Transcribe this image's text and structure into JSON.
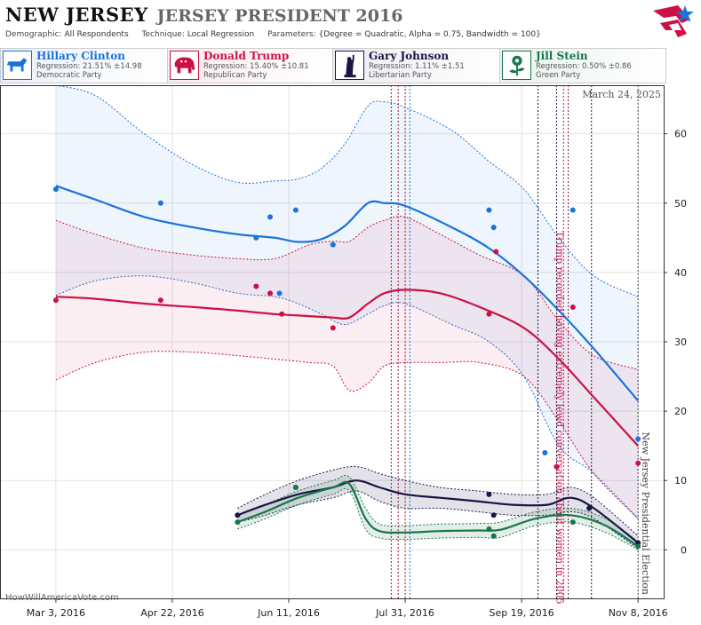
{
  "header": {
    "state": "NEW JERSEY",
    "race": "JERSEY PRESIDENT 2016",
    "demographic_label": "Demographic:",
    "demographic": "All Respondents",
    "technique_label": "Technique:",
    "technique": "Local Regression",
    "parameters_label": "Parameters:",
    "parameters": "{Degree = Quadratic, Alpha = 0.75, Bandwidth = 100}"
  },
  "candidates": [
    {
      "name": "Hillary Clinton",
      "regression": "Regression: 21.51% ±14.98",
      "party": "Democratic Party",
      "color": "#1a73d9",
      "icon": "donkey-icon"
    },
    {
      "name": "Donald Trump",
      "regression": "Regression: 15.40% ±10.81",
      "party": "Republican Party",
      "color": "#cc1144",
      "icon": "elephant-icon"
    },
    {
      "name": "Gary Johnson",
      "regression": "Regression: 1.11% ±1.51",
      "party": "Libertarian Party",
      "color": "#1b1446",
      "icon": "statue-of-liberty-icon"
    },
    {
      "name": "Jill Stein",
      "regression": "Regression: 0.50% ±0.86",
      "party": "Green Party",
      "color": "#16774a",
      "icon": "flower-icon"
    }
  ],
  "date_stamp": "March 24, 2025",
  "credit": "HowWillAmericaVote.com",
  "chart_data": {
    "type": "line",
    "x_axis_type": "date",
    "xlim": [
      "2016-02-08",
      "2016-11-19"
    ],
    "ylim": [
      -7,
      67
    ],
    "yticks": [
      0,
      10,
      20,
      30,
      40,
      50,
      60
    ],
    "xticks": [
      "2016-03-03",
      "2016-04-22",
      "2016-06-11",
      "2016-07-31",
      "2016-09-19",
      "2016-11-08"
    ],
    "xtick_labels": [
      "Mar 3, 2016",
      "Apr 22, 2016",
      "Jun 11, 2016",
      "Jul 31, 2016",
      "Sep 19, 2016",
      "Nov 8, 2016"
    ],
    "grid": true,
    "series": [
      {
        "name": "Hillary Clinton",
        "color": "#1a73d9",
        "trend_x": [
          "2016-03-03",
          "2016-03-20",
          "2016-04-10",
          "2016-05-01",
          "2016-05-20",
          "2016-06-05",
          "2016-06-15",
          "2016-06-25",
          "2016-07-05",
          "2016-07-15",
          "2016-07-22",
          "2016-07-31",
          "2016-08-20",
          "2016-09-05",
          "2016-09-20",
          "2016-10-05",
          "2016-10-20",
          "2016-11-08"
        ],
        "trend": [
          52.5,
          50.5,
          48.0,
          46.5,
          45.5,
          45.0,
          44.4,
          44.8,
          46.7,
          50.0,
          50.0,
          49.6,
          46.5,
          43.5,
          39.5,
          34.5,
          29.0,
          21.5
        ],
        "upper": [
          67.0,
          65.5,
          60.0,
          55.5,
          53.0,
          53.2,
          53.5,
          55.0,
          58.5,
          64.0,
          64.6,
          63.8,
          60.5,
          56.0,
          52.0,
          45.0,
          39.5,
          36.5
        ],
        "lower": [
          36.7,
          38.8,
          39.5,
          38.5,
          37.0,
          36.5,
          35.5,
          34.0,
          32.5,
          34.0,
          35.2,
          35.5,
          32.5,
          30.0,
          25.0,
          15.0,
          11.0,
          4.5
        ],
        "points_x": [
          "2016-03-03",
          "2016-04-17",
          "2016-05-28",
          "2016-06-03",
          "2016-06-07",
          "2016-06-14",
          "2016-06-30",
          "2016-09-05",
          "2016-09-07",
          "2016-09-29",
          "2016-10-11",
          "2016-11-08"
        ],
        "points": [
          52,
          50,
          45,
          48,
          37,
          49,
          44,
          49,
          46.5,
          14,
          49,
          16
        ]
      },
      {
        "name": "Donald Trump",
        "color": "#cc1144",
        "trend_x": [
          "2016-03-03",
          "2016-03-20",
          "2016-04-10",
          "2016-05-01",
          "2016-05-20",
          "2016-06-05",
          "2016-06-20",
          "2016-06-30",
          "2016-07-07",
          "2016-07-15",
          "2016-07-22",
          "2016-07-31",
          "2016-08-15",
          "2016-09-01",
          "2016-09-20",
          "2016-10-05",
          "2016-10-20",
          "2016-11-08"
        ],
        "trend": [
          36.5,
          36.2,
          35.5,
          35.0,
          34.5,
          34.0,
          33.7,
          33.5,
          33.5,
          35.5,
          37.0,
          37.5,
          37.0,
          35.0,
          32.0,
          27.5,
          22.0,
          15.0
        ],
        "upper": [
          47.5,
          45.5,
          43.5,
          42.5,
          42.0,
          42.0,
          44.0,
          44.5,
          44.5,
          46.5,
          47.5,
          48.0,
          45.5,
          42.5,
          39.5,
          33.0,
          28.0,
          26.0
        ],
        "lower": [
          24.5,
          27.0,
          28.5,
          28.5,
          28.0,
          27.5,
          27.0,
          26.5,
          23.0,
          24.0,
          26.5,
          27.0,
          27.0,
          27.0,
          25.0,
          18.5,
          11.0,
          4.5
        ],
        "points_x": [
          "2016-03-03",
          "2016-04-17",
          "2016-05-28",
          "2016-06-03",
          "2016-06-08",
          "2016-06-30",
          "2016-09-05",
          "2016-09-08",
          "2016-10-04",
          "2016-10-11",
          "2016-11-08"
        ],
        "points": [
          36,
          36,
          38,
          37,
          34,
          32,
          34,
          43,
          12,
          35,
          12.5
        ]
      },
      {
        "name": "Gary Johnson",
        "color": "#1b1446",
        "trend_x": [
          "2016-05-20",
          "2016-06-01",
          "2016-06-15",
          "2016-06-30",
          "2016-07-10",
          "2016-07-20",
          "2016-07-31",
          "2016-08-15",
          "2016-08-31",
          "2016-09-15",
          "2016-09-30",
          "2016-10-10",
          "2016-10-20",
          "2016-11-08"
        ],
        "trend": [
          5.0,
          6.5,
          8.0,
          9.0,
          10.0,
          9.0,
          8.0,
          7.5,
          7.0,
          6.5,
          6.5,
          7.5,
          6.0,
          1.0
        ],
        "upper": [
          6.0,
          8.0,
          10.0,
          11.5,
          12.0,
          11.0,
          10.0,
          9.0,
          8.5,
          8.0,
          8.0,
          9.0,
          7.5,
          2.0
        ],
        "lower": [
          4.0,
          5.0,
          6.5,
          7.5,
          8.5,
          7.0,
          6.0,
          6.0,
          5.5,
          5.0,
          5.0,
          5.5,
          4.5,
          0.2
        ],
        "points_x": [
          "2016-05-20",
          "2016-06-14",
          "2016-09-05",
          "2016-09-07",
          "2016-10-18",
          "2016-11-08"
        ],
        "points": [
          5,
          9,
          8,
          5,
          6,
          1
        ]
      },
      {
        "name": "Jill Stein",
        "color": "#16774a",
        "trend_x": [
          "2016-05-20",
          "2016-06-01",
          "2016-06-15",
          "2016-06-30",
          "2016-07-07",
          "2016-07-14",
          "2016-07-20",
          "2016-07-31",
          "2016-08-15",
          "2016-08-31",
          "2016-09-10",
          "2016-09-25",
          "2016-10-10",
          "2016-10-25",
          "2016-11-08"
        ],
        "trend": [
          4.0,
          5.5,
          7.5,
          9.0,
          9.5,
          4.5,
          2.7,
          2.5,
          2.7,
          2.8,
          2.9,
          4.5,
          5.0,
          3.5,
          0.5
        ],
        "upper": [
          5.0,
          6.5,
          8.5,
          10.0,
          10.5,
          6.0,
          3.7,
          3.5,
          3.7,
          3.8,
          4.0,
          5.5,
          6.0,
          4.5,
          1.2
        ],
        "lower": [
          3.0,
          4.5,
          6.5,
          8.0,
          8.5,
          3.0,
          1.7,
          1.5,
          1.7,
          1.8,
          1.8,
          3.5,
          4.0,
          2.5,
          0.0
        ],
        "points_x": [
          "2016-05-20",
          "2016-06-14",
          "2016-09-05",
          "2016-09-07",
          "2016-10-11",
          "2016-11-08"
        ],
        "points": [
          4,
          9,
          3,
          2,
          4,
          0.5
        ]
      }
    ],
    "events": [
      {
        "date": "2016-07-25",
        "color": "#8b1a4a"
      },
      {
        "date": "2016-07-28",
        "color": "#8b1a4a"
      },
      {
        "date": "2016-07-31",
        "color": "#cc1144"
      },
      {
        "date": "2016-08-02",
        "color": "#1a73d9"
      },
      {
        "date": "2016-09-26",
        "color": "#1b1446"
      },
      {
        "date": "2016-10-04",
        "color": "#1b1446"
      },
      {
        "date": "2016-10-07",
        "color": "#cc1144",
        "label": "Trump recorded having extremely lewd conversation about women in 2005"
      },
      {
        "date": "2016-10-09",
        "color": "#8b1a4a"
      },
      {
        "date": "2016-10-19",
        "color": "#1b1446"
      },
      {
        "date": "2016-11-08",
        "color": "#444444",
        "label": "New Jersey Presidential Election"
      }
    ]
  }
}
